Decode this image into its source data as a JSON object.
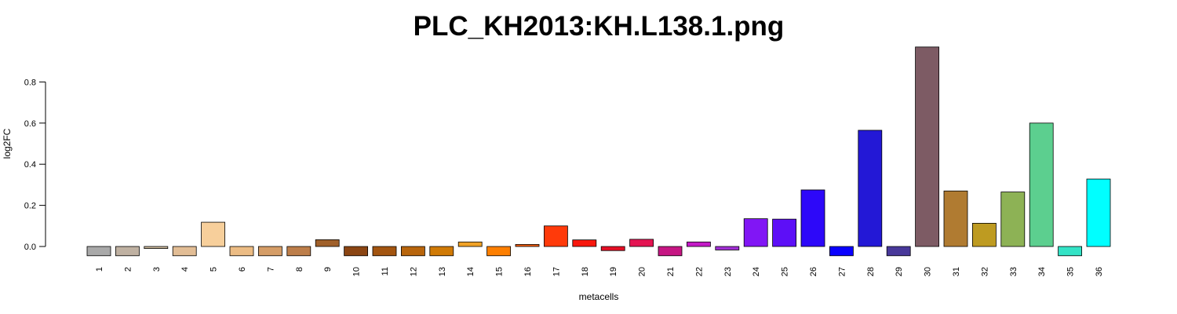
{
  "chart_data": {
    "type": "bar",
    "title": "PLC_KH2013:KH.L138.1.png",
    "xlabel": "metacells",
    "ylabel": "log2FC",
    "ylim": [
      -0.05,
      0.97
    ],
    "yticks": [
      "0.0",
      "0.2",
      "0.4",
      "0.6",
      "0.8"
    ],
    "categories": [
      "1",
      "2",
      "3",
      "4",
      "5",
      "6",
      "7",
      "8",
      "9",
      "10",
      "11",
      "12",
      "13",
      "14",
      "15",
      "16",
      "17",
      "18",
      "19",
      "20",
      "21",
      "22",
      "23",
      "24",
      "25",
      "26",
      "27",
      "28",
      "29",
      "30",
      "31",
      "32",
      "33",
      "34",
      "35",
      "36"
    ],
    "values": [
      -0.045,
      -0.045,
      -0.01,
      -0.045,
      0.118,
      -0.045,
      -0.045,
      -0.045,
      0.033,
      -0.045,
      -0.045,
      -0.045,
      -0.045,
      0.022,
      -0.045,
      0.01,
      0.1,
      0.032,
      -0.02,
      0.035,
      -0.045,
      0.022,
      -0.017,
      0.135,
      0.133,
      0.275,
      -0.045,
      0.565,
      -0.045,
      0.97,
      0.27,
      0.113,
      0.265,
      0.6,
      -0.045,
      0.328
    ],
    "colors": [
      "#a9a9a9",
      "#bfb1a2",
      "#c9b79a",
      "#e2bd95",
      "#f7cf9b",
      "#ecbc84",
      "#d59d67",
      "#bd7e4a",
      "#a0602a",
      "#8b4513",
      "#a35510",
      "#b8650c",
      "#d07a05",
      "#f0a226",
      "#fd7f00",
      "#f35e10",
      "#ff3a0a",
      "#f8180e",
      "#e50f25",
      "#e41452",
      "#c61683",
      "#c41ac7",
      "#a12fd4",
      "#8116f5",
      "#5d0ff7",
      "#2d08f9",
      "#0a00ff",
      "#2318d6",
      "#48389a",
      "#7d5b64",
      "#b07b31",
      "#be9b21",
      "#8db255",
      "#5ccf8f",
      "#33e3c6",
      "#00ffff"
    ]
  }
}
